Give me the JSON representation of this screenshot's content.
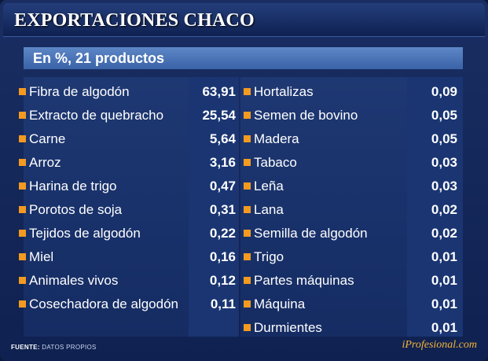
{
  "header": {
    "title": "EXPORTACIONES CHACO"
  },
  "subheader": {
    "text": "En %, 21 productos"
  },
  "left_items": [
    {
      "name": "Fibra de algodón",
      "value": "63,91"
    },
    {
      "name": "Extracto de quebracho",
      "value": "25,54"
    },
    {
      "name": "Carne",
      "value": "5,64"
    },
    {
      "name": "Arroz",
      "value": "3,16"
    },
    {
      "name": "Harina de trigo",
      "value": "0,47"
    },
    {
      "name": "Porotos de soja",
      "value": "0,31"
    },
    {
      "name": "Tejidos de algodón",
      "value": "0,22"
    },
    {
      "name": "Miel",
      "value": "0,16"
    },
    {
      "name": "Animales vivos",
      "value": "0,12"
    },
    {
      "name": "Cosechadora de algodón",
      "value": "0,11"
    }
  ],
  "right_items": [
    {
      "name": "Hortalizas",
      "value": "0,09"
    },
    {
      "name": "Semen de bovino",
      "value": "0,05"
    },
    {
      "name": "Madera",
      "value": "0,05"
    },
    {
      "name": "Tabaco",
      "value": "0,03"
    },
    {
      "name": "Leña",
      "value": "0,03"
    },
    {
      "name": "Lana",
      "value": "0,02"
    },
    {
      "name": "Semilla de algodón",
      "value": "0,02"
    },
    {
      "name": "Trigo",
      "value": "0,01"
    },
    {
      "name": "Partes máquinas",
      "value": "0,01"
    },
    {
      "name": "Máquina",
      "value": "0,01"
    },
    {
      "name": "Durmientes",
      "value": "0,01"
    }
  ],
  "footer": {
    "source_label": "FUENTE:",
    "source_text": "DATOS PROPIOS",
    "brand": "iProfesional.com"
  },
  "colors": {
    "background": "#0f2150",
    "bullet": "#f39a21",
    "brand": "#f3b437"
  }
}
